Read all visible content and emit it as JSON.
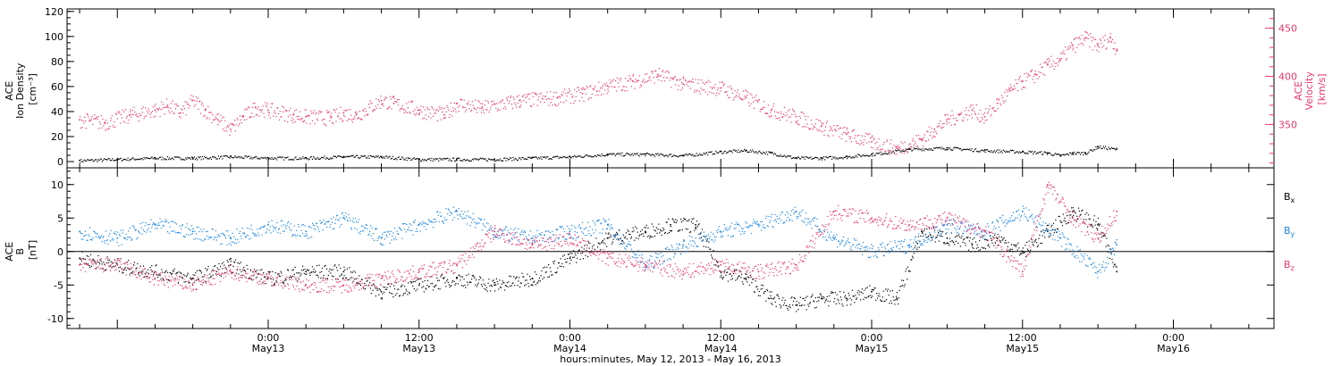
{
  "chart_data": [
    {
      "type": "scatter",
      "panel": "top",
      "ylabel_lines": [
        "ACE",
        "Ion Density"
      ],
      "yunit": "[cm⁻³]",
      "ylim": [
        -5,
        122
      ],
      "yticks": [
        "0",
        "20",
        "40",
        "60",
        "80",
        "100",
        "120"
      ],
      "ytick_values": [
        0,
        20,
        40,
        60,
        80,
        100,
        120
      ],
      "right_axis": {
        "label_lines": [
          "ACE",
          "Velocity"
        ],
        "unit": "[km/s]",
        "ylim": [
          305,
          470
        ],
        "ticks": [
          "350",
          "400",
          "450"
        ],
        "tick_values": [
          350,
          400,
          450
        ],
        "color": "#e8386b"
      },
      "series": [
        {
          "color": "#000000",
          "axis": "left",
          "x_hours": [
            -15,
            -12,
            -9,
            -6,
            -3,
            0,
            3,
            6,
            9,
            12,
            15,
            18,
            21,
            24,
            27,
            30,
            33,
            36,
            38,
            40,
            42,
            44,
            46,
            48,
            51,
            54,
            57,
            60,
            62,
            63,
            64,
            65,
            66,
            67.5
          ],
          "values": [
            1,
            2,
            3,
            3,
            4,
            3,
            3,
            4,
            4,
            2,
            2,
            2,
            3,
            4,
            6,
            6,
            5,
            8,
            9,
            7,
            3,
            3,
            4,
            6,
            10,
            11,
            9,
            8,
            7,
            5,
            7,
            7,
            12,
            10
          ]
        },
        {
          "color": "#e8386b",
          "axis": "right",
          "x_hours": [
            -15,
            -13,
            -11,
            -9,
            -8,
            -7,
            -6,
            -5,
            -4,
            -3,
            -2,
            -1,
            0,
            2,
            3,
            5,
            6,
            7,
            9,
            10,
            12,
            14,
            15,
            17,
            20,
            23,
            25,
            27,
            29,
            31,
            33,
            36,
            38,
            40,
            42,
            44,
            46,
            48,
            50,
            52,
            53,
            54,
            55,
            56,
            57,
            58,
            59,
            60,
            61,
            62,
            63,
            64,
            65,
            66,
            67,
            67.5
          ],
          "values": [
            355,
            352,
            360,
            365,
            370,
            362,
            375,
            365,
            355,
            345,
            358,
            368,
            365,
            360,
            358,
            357,
            362,
            360,
            375,
            372,
            365,
            360,
            372,
            367,
            375,
            378,
            382,
            390,
            395,
            402,
            392,
            388,
            378,
            365,
            358,
            348,
            340,
            332,
            325,
            335,
            345,
            355,
            360,
            365,
            358,
            372,
            385,
            395,
            402,
            412,
            418,
            432,
            440,
            432,
            440,
            428
          ]
        }
      ]
    },
    {
      "type": "scatter",
      "panel": "bottom",
      "ylabel_lines": [
        "ACE",
        "B"
      ],
      "yunit": "[nT]",
      "ylim": [
        -11.5,
        12.5
      ],
      "yticks": [
        "-10",
        "-5",
        "0",
        "5",
        "10"
      ],
      "ytick_values": [
        -10,
        -5,
        0,
        5,
        10
      ],
      "series": [
        {
          "name": "B",
          "subscript": "x",
          "color": "#000000",
          "x_hours": [
            -15,
            -12,
            -9,
            -6,
            -3,
            0,
            3,
            6,
            9,
            12,
            15,
            18,
            21,
            24,
            27,
            30,
            32,
            34,
            36,
            38,
            40,
            42,
            44,
            46,
            48,
            50,
            52,
            54,
            56,
            58,
            60,
            62,
            64,
            66,
            67.5
          ],
          "values": [
            -1,
            -2,
            -3,
            -4,
            -2,
            -4,
            -3,
            -3,
            -6,
            -5,
            -4,
            -5,
            -4,
            -1,
            2,
            3,
            4,
            4,
            -3,
            -4,
            -7,
            -8,
            -7,
            -7,
            -6,
            -7,
            3,
            2,
            1,
            2,
            0,
            3,
            6,
            4,
            -3
          ]
        },
        {
          "name": "B",
          "subscript": "y",
          "color": "#1a84e0",
          "x_hours": [
            -15,
            -12,
            -9,
            -6,
            -3,
            0,
            3,
            6,
            9,
            12,
            15,
            18,
            21,
            24,
            27,
            30,
            33,
            36,
            39,
            42,
            45,
            48,
            51,
            54,
            57,
            60,
            63,
            66,
            67.5
          ],
          "values": [
            3,
            2,
            4,
            3,
            2,
            4,
            3,
            5,
            2,
            4,
            6,
            3,
            2,
            3,
            4,
            -2,
            1,
            3,
            4,
            6,
            2,
            0,
            1,
            4,
            3,
            6,
            2,
            -3,
            1
          ]
        },
        {
          "name": "B",
          "subscript": "z",
          "color": "#e8386b",
          "x_hours": [
            -15,
            -12,
            -9,
            -6,
            -3,
            0,
            3,
            6,
            9,
            12,
            15,
            18,
            21,
            24,
            27,
            30,
            33,
            36,
            39,
            42,
            45,
            48,
            51,
            54,
            57,
            60,
            62,
            64,
            66,
            67.5
          ],
          "values": [
            -2,
            -2,
            -4,
            -5,
            -3,
            -4,
            -5,
            -5,
            -4,
            -3,
            -2,
            3,
            1,
            2,
            -1,
            -2,
            -3,
            -2,
            -3,
            -2,
            6,
            5,
            4,
            5,
            3,
            -3,
            10,
            5,
            2,
            6
          ]
        }
      ]
    }
  ],
  "x_axis": {
    "label": "hours:minutes, May 12, 2013 - May 16, 2013",
    "range_hours": [
      -16,
      80
    ],
    "ticks": [
      {
        "hours": 0,
        "time": "0:00",
        "day": "May13"
      },
      {
        "hours": 12,
        "time": "12:00",
        "day": "May13"
      },
      {
        "hours": 24,
        "time": "0:00",
        "day": "May14"
      },
      {
        "hours": 36,
        "time": "12:00",
        "day": "May14"
      },
      {
        "hours": 48,
        "time": "0:00",
        "day": "May15"
      },
      {
        "hours": 60,
        "time": "12:00",
        "day": "May15"
      },
      {
        "hours": 72,
        "time": "0:00",
        "day": "May16"
      }
    ]
  }
}
